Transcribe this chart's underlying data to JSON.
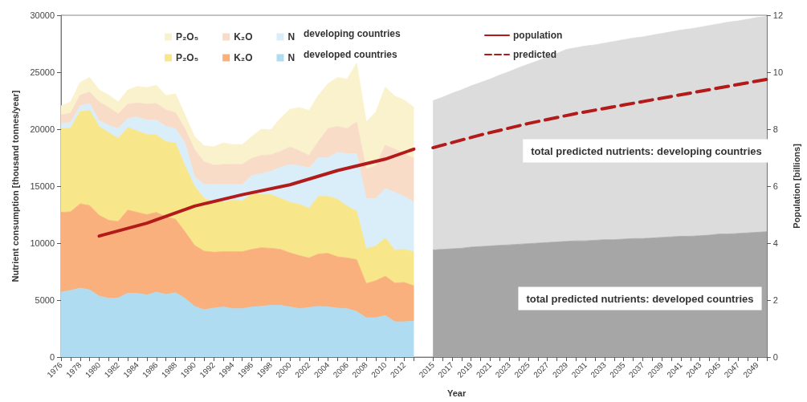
{
  "chart_data": {
    "type": "area",
    "stacked": true,
    "xlabel": "Year",
    "ylabel": "Nutrient consumption [thousand tonnes/year]",
    "y2label": "Population [billions]",
    "legend": "top",
    "annotations": [
      "developing countries",
      "developed countries",
      "total predicted nutrients: developing countries",
      "total predicted nutrients: developed countries"
    ],
    "x": [
      1976,
      1977,
      1978,
      1979,
      1980,
      1981,
      1982,
      1983,
      1984,
      1985,
      1986,
      1987,
      1988,
      1989,
      1990,
      1991,
      1992,
      1993,
      1994,
      1995,
      1996,
      1997,
      1998,
      1999,
      2000,
      2001,
      2002,
      2003,
      2004,
      2005,
      2006,
      2007,
      2008,
      2009,
      2010,
      2011,
      2012,
      2013,
      2014,
      2015,
      2016,
      2017,
      2018,
      2019,
      2020,
      2021,
      2022,
      2023,
      2024,
      2025,
      2026,
      2027,
      2028,
      2029,
      2030,
      2031,
      2032,
      2033,
      2034,
      2035,
      2036,
      2037,
      2038,
      2039,
      2040,
      2041,
      2042,
      2043,
      2044,
      2045,
      2046,
      2047,
      2048,
      2049,
      2050
    ],
    "xlim": [
      1976,
      2050
    ],
    "xticks": [
      1976,
      {
        "value": 1977,
        "label": null
      },
      1978,
      {
        "value": 1979,
        "label": null
      },
      1980,
      {
        "value": 1981,
        "label": null
      },
      1982,
      {
        "value": 1983,
        "label": null
      },
      1984,
      {
        "value": 1985,
        "label": null
      },
      1986,
      {
        "value": 1987,
        "label": null
      },
      1988,
      {
        "value": 1989,
        "label": null
      },
      1990,
      {
        "value": 1991,
        "label": null
      },
      1992,
      {
        "value": 1993,
        "label": null
      },
      1994,
      {
        "value": 1995,
        "label": null
      },
      1996,
      {
        "value": 1997,
        "label": null
      },
      1998,
      {
        "value": 1999,
        "label": null
      },
      2000,
      {
        "value": 2001,
        "label": null
      },
      2002,
      {
        "value": 2003,
        "label": null
      },
      2004,
      {
        "value": 2005,
        "label": null
      },
      2006,
      {
        "value": 2007,
        "label": null
      },
      2008,
      {
        "value": 2009,
        "label": null
      },
      2010,
      {
        "value": 2011,
        "label": null
      },
      2012,
      {
        "value": 2013,
        "label": null
      },
      2015,
      {
        "value": 2016,
        "label": null
      },
      2017,
      {
        "value": 2018,
        "label": null
      },
      2019,
      {
        "value": 2020,
        "label": null
      },
      2021,
      {
        "value": 2022,
        "label": null
      },
      2023,
      {
        "value": 2024,
        "label": null
      },
      2025,
      {
        "value": 2026,
        "label": null
      },
      2027,
      {
        "value": 2028,
        "label": null
      },
      2029,
      {
        "value": 2030,
        "label": null
      },
      2031,
      {
        "value": 2032,
        "label": null
      },
      2033,
      {
        "value": 2034,
        "label": null
      },
      2035,
      {
        "value": 2036,
        "label": null
      },
      2037,
      {
        "value": 2038,
        "label": null
      },
      2039,
      {
        "value": 2040,
        "label": null
      },
      2041,
      {
        "value": 2042,
        "label": null
      },
      2043,
      {
        "value": 2044,
        "label": null
      },
      2045,
      {
        "value": 2046,
        "label": null
      },
      2047,
      {
        "value": 2048,
        "label": null
      },
      2049,
      {
        "value": 2050,
        "label": null
      }
    ],
    "ylim": [
      0,
      30000
    ],
    "yticks": [
      0,
      5000,
      10000,
      15000,
      20000,
      25000,
      30000
    ],
    "y2lim": [
      0,
      12
    ],
    "y2ticks": [
      0,
      2,
      4,
      6,
      8,
      10,
      12
    ],
    "series": [
      {
        "name": "N",
        "color": "#afdcf1",
        "values": [
          5700,
          5850,
          6050,
          5900,
          5350,
          5150,
          5200,
          5600,
          5600,
          5450,
          5700,
          5500,
          5650,
          5150,
          4450,
          4150,
          4300,
          4400,
          4250,
          4250,
          4400,
          4450,
          4550,
          4550,
          4400,
          4250,
          4350,
          4450,
          4400,
          4300,
          4250,
          4000,
          3450,
          3450,
          3650,
          3100,
          3100,
          3150,
          null,
          null,
          null,
          null,
          null,
          null,
          null,
          null,
          null,
          null,
          null,
          null,
          null,
          null,
          null,
          null,
          null,
          null,
          null,
          null,
          null,
          null,
          null,
          null,
          null,
          null,
          null,
          null,
          null,
          null,
          null,
          null,
          null,
          null,
          null,
          null,
          null
        ]
      },
      {
        "name": "K₂O",
        "color": "#f9b07c",
        "values": [
          7000,
          6900,
          7400,
          7400,
          7100,
          6850,
          6700,
          7300,
          7100,
          7050,
          7000,
          6800,
          6450,
          5850,
          5350,
          5150,
          4900,
          4850,
          5000,
          5000,
          5050,
          5150,
          5000,
          4900,
          4750,
          4650,
          4350,
          4600,
          4700,
          4500,
          4450,
          4550,
          3000,
          3250,
          3450,
          3400,
          3450,
          3100,
          null,
          null,
          null,
          null,
          null,
          null,
          null,
          null,
          null,
          null,
          null,
          null,
          null,
          null,
          null,
          null,
          null,
          null,
          null,
          null,
          null,
          null,
          null,
          null,
          null,
          null,
          null,
          null,
          null,
          null,
          null,
          null,
          null,
          null,
          null,
          null,
          null
        ]
      },
      {
        "name": "P₂O₅",
        "color": "#f8e68a",
        "values": [
          7350,
          7350,
          8100,
          8350,
          7800,
          7700,
          7300,
          7250,
          7150,
          7050,
          6800,
          6600,
          6700,
          5800,
          5200,
          4650,
          4400,
          4350,
          4550,
          4450,
          4850,
          4700,
          4700,
          4500,
          4450,
          4500,
          4350,
          5050,
          5000,
          5050,
          4550,
          4250,
          3050,
          3050,
          3350,
          2900,
          2900,
          3000,
          null,
          null,
          null,
          null,
          null,
          null,
          null,
          null,
          null,
          null,
          null,
          null,
          null,
          null,
          null,
          null,
          null,
          null,
          null,
          null,
          null,
          null,
          null,
          null,
          null,
          null,
          null,
          null,
          null,
          null,
          null,
          null,
          null,
          null,
          null,
          null,
          null
        ]
      },
      {
        "name": "N",
        "color": "#d9eef8",
        "values": [
          450,
          500,
          500,
          600,
          500,
          650,
          850,
          800,
          1200,
          1250,
          1300,
          1350,
          1250,
          2000,
          850,
          1200,
          1550,
          1550,
          1350,
          1450,
          1650,
          1800,
          2050,
          2700,
          3300,
          3400,
          3550,
          3400,
          3400,
          4100,
          4600,
          5050,
          4450,
          4150,
          4350,
          5050,
          4650,
          4350,
          null,
          null,
          null,
          null,
          null,
          null,
          null,
          null,
          null,
          null,
          null,
          null,
          null,
          null,
          null,
          null,
          null,
          null,
          null,
          null,
          null,
          null,
          null,
          null,
          null,
          null,
          null,
          null,
          null,
          null,
          null,
          null,
          null,
          null,
          null,
          null,
          null
        ]
      },
      {
        "name": "K₂O",
        "color": "#f8dcc8",
        "values": [
          750,
          800,
          950,
          1000,
          1650,
          1550,
          1300,
          1250,
          1250,
          1400,
          1450,
          1450,
          1400,
          1250,
          2350,
          2000,
          1700,
          1750,
          1750,
          1750,
          1500,
          1600,
          1450,
          1400,
          1550,
          1300,
          1100,
          1450,
          2550,
          2300,
          2200,
          2800,
          2550,
          2900,
          3800,
          3800,
          3750,
          3850,
          null,
          null,
          null,
          null,
          null,
          null,
          null,
          null,
          null,
          null,
          null,
          null,
          null,
          null,
          null,
          null,
          null,
          null,
          null,
          null,
          null,
          null,
          null,
          null,
          null,
          null,
          null,
          null,
          null,
          null,
          null,
          null,
          null,
          null,
          null,
          null,
          null
        ]
      },
      {
        "name": "P₂O₅",
        "color": "#faf2cc",
        "values": [
          800,
          1000,
          1100,
          1300,
          1050,
          1100,
          1050,
          1250,
          1450,
          1450,
          1600,
          1250,
          1650,
          1200,
          1150,
          1400,
          1600,
          1900,
          1750,
          1750,
          1900,
          2300,
          2200,
          2900,
          3300,
          3800,
          3950,
          4050,
          3950,
          4300,
          4350,
          5150,
          4150,
          4700,
          5100,
          4650,
          4700,
          4450,
          null,
          null,
          null,
          null,
          null,
          null,
          null,
          null,
          null,
          null,
          null,
          null,
          null,
          null,
          null,
          null,
          null,
          null,
          null,
          null,
          null,
          null,
          null,
          null,
          null,
          null,
          null,
          null,
          null,
          null,
          null,
          null,
          null,
          null,
          null,
          null,
          null
        ]
      },
      {
        "color": "#a6a6a6",
        "values": [
          null,
          null,
          null,
          null,
          null,
          null,
          null,
          null,
          null,
          null,
          null,
          null,
          null,
          null,
          null,
          null,
          null,
          null,
          null,
          null,
          null,
          null,
          null,
          null,
          null,
          null,
          null,
          null,
          null,
          null,
          null,
          null,
          null,
          null,
          null,
          null,
          null,
          null,
          null,
          9400,
          9450,
          9500,
          9550,
          9650,
          9700,
          9750,
          9800,
          9850,
          9900,
          9950,
          10000,
          10050,
          10100,
          10150,
          10200,
          10200,
          10250,
          10300,
          10300,
          10350,
          10400,
          10400,
          10450,
          10500,
          10550,
          10600,
          10600,
          10650,
          10700,
          10800,
          10800,
          10850,
          10900,
          10950,
          11000
        ]
      },
      {
        "color": "#dcdcdc",
        "values": [
          null,
          null,
          null,
          null,
          null,
          null,
          null,
          null,
          null,
          null,
          null,
          null,
          null,
          null,
          null,
          null,
          null,
          null,
          null,
          null,
          null,
          null,
          null,
          null,
          null,
          null,
          null,
          null,
          null,
          null,
          null,
          null,
          null,
          null,
          null,
          null,
          null,
          null,
          null,
          13100,
          13350,
          13650,
          13900,
          14150,
          14400,
          14650,
          14950,
          15200,
          15500,
          15750,
          16000,
          16300,
          16550,
          16850,
          16950,
          17100,
          17150,
          17250,
          17400,
          17500,
          17600,
          17700,
          17800,
          17900,
          18000,
          18100,
          18200,
          18300,
          18400,
          18450,
          18600,
          18650,
          18750,
          18850,
          18900
        ]
      },
      {
        "name": "population",
        "type": "line",
        "axis": "y2",
        "color": "#b31b1b",
        "x": [
          1980,
          1985,
          1990,
          1995,
          2000,
          2005,
          2010,
          2013
        ],
        "values": [
          4.25,
          4.7,
          5.3,
          5.7,
          6.05,
          6.55,
          6.95,
          7.3
        ]
      },
      {
        "name": "predicted",
        "type": "line",
        "axis": "y2",
        "line_style": "dashed",
        "color": "#b31b1b",
        "x": [
          2015,
          2020,
          2025,
          2030,
          2035,
          2040,
          2045,
          2050
        ],
        "values": [
          7.35,
          7.8,
          8.2,
          8.55,
          8.85,
          9.15,
          9.45,
          9.75
        ]
      }
    ]
  }
}
